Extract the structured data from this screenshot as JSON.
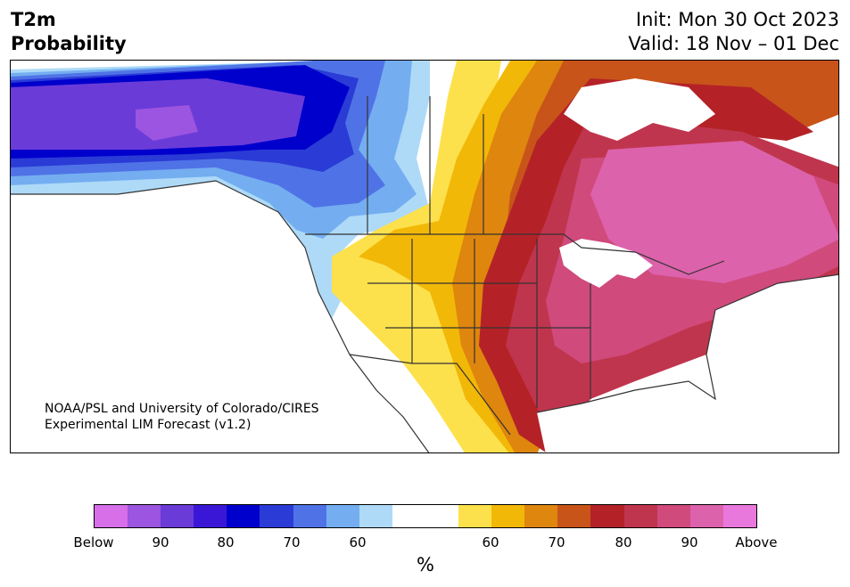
{
  "header": {
    "variable": "T2m",
    "product": "Probability",
    "init": "Init: Mon 30 Oct 2023",
    "valid": "Valid: 18 Nov – 01 Dec"
  },
  "credit": {
    "line1": "NOAA/PSL and University of Colorado/CIRES",
    "line2": "Experimental LIM Forecast (v1.2)"
  },
  "colorbar": {
    "colors": [
      "#d66fe8",
      "#9b55e0",
      "#6b3bd8",
      "#3a17d6",
      "#0000cd",
      "#2a3bd6",
      "#4f73e6",
      "#74aef0",
      "#aedaf8",
      "#ffffff",
      "#ffffff",
      "#fde14c",
      "#f2b808",
      "#de860e",
      "#c8541a",
      "#b42228",
      "#c0354e",
      "#d04a7c",
      "#dc62ab",
      "#e978dd"
    ],
    "ticks": [
      "Below",
      "90",
      "80",
      "70",
      "60",
      "60",
      "70",
      "80",
      "90",
      "Above"
    ],
    "unit": "%"
  },
  "colors": {
    "below_90": "#6b3bd8",
    "below_80": "#0000cd",
    "below_70": "#4f73e6",
    "below_60": "#aedaf8",
    "above_60": "#fde14c",
    "above_70": "#de860e",
    "above_80": "#b42228",
    "above_90": "#dc62ab",
    "borders": "#333333"
  }
}
